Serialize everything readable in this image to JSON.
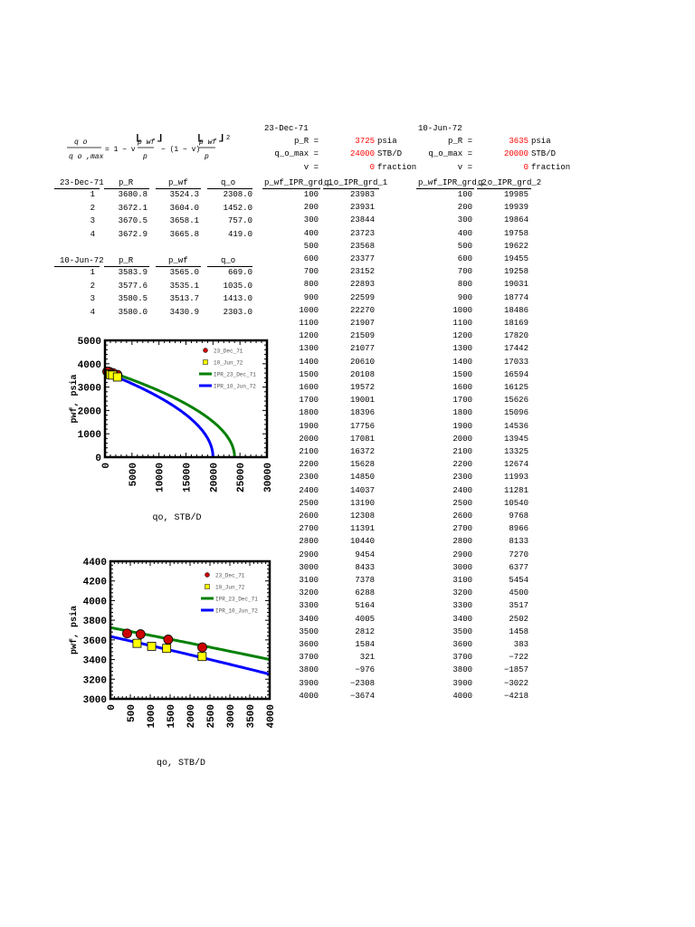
{
  "formula": {
    "q_o": "q o",
    "q_o_max": "q o ,max",
    "eq_rhs": "= 1 − v",
    "p_wf": "p wf",
    "p_bar": "p",
    "minus_term": "− (1 − v)",
    "exponent": "2"
  },
  "set1": {
    "date": "23-Dec-71",
    "p_R_label": "p_R =",
    "p_R_value": "3725",
    "p_R_unit": "psia",
    "q_o_max_label": "q_o_max =",
    "q_o_max_value": "24000",
    "q_o_max_unit": "STB/D",
    "v_label": "v =",
    "v_value": "0",
    "v_unit": "fraction",
    "col1": "p_wf_IPR_grd_1",
    "col2": "q_o_IPR_grd_1",
    "p_wf": [
      100,
      200,
      300,
      400,
      500,
      600,
      700,
      800,
      900,
      1000,
      1100,
      1200,
      1300,
      1400,
      1500,
      1600,
      1700,
      1800,
      1900,
      2000,
      2100,
      2200,
      2300,
      2400,
      2500,
      2600,
      2700,
      2800,
      2900,
      3000,
      3100,
      3200,
      3300,
      3400,
      3500,
      3600,
      3700,
      3800,
      3900,
      4000
    ],
    "q_o": [
      23983,
      23931,
      23844,
      23723,
      23568,
      23377,
      23152,
      22893,
      22599,
      22270,
      21907,
      21509,
      21077,
      20610,
      20108,
      19572,
      19001,
      18396,
      17756,
      17081,
      16372,
      15628,
      14850,
      14037,
      13190,
      12308,
      11391,
      10440,
      9454,
      8433,
      7378,
      6288,
      5164,
      4005,
      2812,
      1584,
      321,
      -976,
      -2308,
      -3674
    ]
  },
  "set2": {
    "date": "10-Jun-72",
    "p_R_label": "p_R =",
    "p_R_value": "3635",
    "p_R_unit": "psia",
    "q_o_max_label": "q_o_max =",
    "q_o_max_value": "20000",
    "q_o_max_unit": "STB/D",
    "v_label": "v =",
    "v_value": "0",
    "v_unit": "fraction",
    "col1": "p_wf_IPR_grd_2",
    "col2": "q_o_IPR_grd_2",
    "p_wf": [
      100,
      200,
      300,
      400,
      500,
      600,
      700,
      800,
      900,
      1000,
      1100,
      1200,
      1300,
      1400,
      1500,
      1600,
      1700,
      1800,
      1900,
      2000,
      2100,
      2200,
      2300,
      2400,
      2500,
      2600,
      2700,
      2800,
      2900,
      3000,
      3100,
      3200,
      3300,
      3400,
      3500,
      3600,
      3700,
      3800,
      3900,
      4000
    ],
    "q_o": [
      19985,
      19939,
      19864,
      19758,
      19622,
      19455,
      19258,
      19031,
      18774,
      18486,
      18169,
      17820,
      17442,
      17033,
      16594,
      16125,
      15626,
      15096,
      14536,
      13945,
      13325,
      12674,
      11993,
      11281,
      10540,
      9768,
      8966,
      8133,
      7270,
      6377,
      5454,
      4500,
      3517,
      2502,
      1458,
      383,
      -722,
      -1857,
      -3022,
      -4218
    ]
  },
  "tests1": {
    "date": "23-Dec-71",
    "headers": [
      "p_R",
      "p_wf",
      "q_o"
    ],
    "rows": [
      [
        "1",
        "3680.8",
        "3524.3",
        "2308.0"
      ],
      [
        "2",
        "3672.1",
        "3604.0",
        "1452.0"
      ],
      [
        "3",
        "3670.5",
        "3658.1",
        "757.0"
      ],
      [
        "4",
        "3672.9",
        "3665.8",
        "419.0"
      ]
    ]
  },
  "tests2": {
    "date": "10-Jun-72",
    "headers": [
      "p_R",
      "p_wf",
      "q_o"
    ],
    "rows": [
      [
        "1",
        "3583.9",
        "3565.0",
        "669.0"
      ],
      [
        "2",
        "3577.6",
        "3535.1",
        "1035.0"
      ],
      [
        "3",
        "3580.5",
        "3513.7",
        "1413.0"
      ],
      [
        "4",
        "3580.0",
        "3430.9",
        "2303.0"
      ]
    ]
  },
  "chart_data": [
    {
      "type": "line",
      "ylabel": "pwf, psia",
      "xlabel": "qo, STB/D",
      "xlim": [
        0,
        30000
      ],
      "ylim": [
        0,
        5000
      ],
      "xticks": [
        "0",
        "5000",
        "10000",
        "15000",
        "20000",
        "25000",
        "30000"
      ],
      "yticks": [
        "0",
        "1000",
        "2000",
        "3000",
        "4000",
        "5000"
      ],
      "legend_position": "top-right",
      "series": [
        {
          "name": "23_Dec_71",
          "kind": "scatter",
          "color": "#cc0000",
          "points": [
            [
              2308,
              3524.3
            ],
            [
              1452,
              3604.0
            ],
            [
              757,
              3658.1
            ],
            [
              419,
              3665.8
            ]
          ]
        },
        {
          "name": "10_Jun_72",
          "kind": "scatter",
          "color": "#ffff00",
          "points": [
            [
              669,
              3565.0
            ],
            [
              1035,
              3535.1
            ],
            [
              1413,
              3513.7
            ],
            [
              2303,
              3430.9
            ]
          ]
        },
        {
          "name": "IPR_23_Dec_71",
          "kind": "ipr",
          "color": "#008000",
          "p_R": 3725,
          "q_max": 24000
        },
        {
          "name": "IPR_10_Jun_72",
          "kind": "ipr",
          "color": "#0000ff",
          "p_R": 3635,
          "q_max": 20000
        }
      ]
    },
    {
      "type": "line",
      "ylabel": "pwf, psia",
      "xlabel": "qo, STB/D",
      "xlim": [
        0,
        4000
      ],
      "ylim": [
        3000,
        4400
      ],
      "xticks": [
        "0",
        "500",
        "1000",
        "1500",
        "2000",
        "2500",
        "3000",
        "3500",
        "4000"
      ],
      "yticks": [
        "3000",
        "3200",
        "3400",
        "3600",
        "3800",
        "4000",
        "4200",
        "4400"
      ],
      "legend_position": "top-right",
      "series": [
        {
          "name": "23_Dec_71",
          "kind": "scatter",
          "color": "#cc0000",
          "points": [
            [
              2308,
              3524.3
            ],
            [
              1452,
              3604.0
            ],
            [
              757,
              3658.1
            ],
            [
              419,
              3665.8
            ]
          ]
        },
        {
          "name": "10_Jun_72",
          "kind": "scatter",
          "color": "#ffff00",
          "points": [
            [
              669,
              3565.0
            ],
            [
              1035,
              3535.1
            ],
            [
              1413,
              3513.7
            ],
            [
              2303,
              3430.9
            ]
          ]
        },
        {
          "name": "IPR_23_Dec_71",
          "kind": "ipr",
          "color": "#008000",
          "p_R": 3725,
          "q_max": 24000
        },
        {
          "name": "IPR_10_Jun_72",
          "kind": "ipr",
          "color": "#0000ff",
          "p_R": 3635,
          "q_max": 20000
        }
      ]
    }
  ]
}
